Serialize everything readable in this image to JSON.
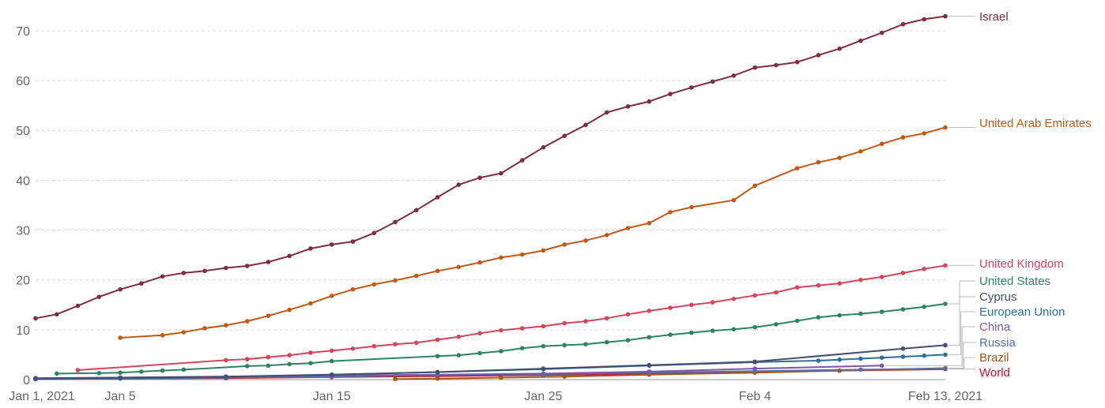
{
  "chart_data": {
    "type": "line",
    "title": "",
    "xlabel": "",
    "ylabel": "",
    "x_range": [
      "2021-01-01",
      "2021-02-13"
    ],
    "ylim": [
      0,
      73
    ],
    "y_ticks": [
      0,
      10,
      20,
      30,
      40,
      50,
      60,
      70
    ],
    "x_ticks": [
      {
        "date": "2021-01-01",
        "label": "Jan 1, 2021"
      },
      {
        "date": "2021-01-05",
        "label": "Jan 5"
      },
      {
        "date": "2021-01-15",
        "label": "Jan 15"
      },
      {
        "date": "2021-01-25",
        "label": "Jan 25"
      },
      {
        "date": "2021-02-04",
        "label": "Feb 4"
      },
      {
        "date": "2021-02-13",
        "label": "Feb 13, 2021"
      }
    ],
    "grid": true,
    "legend": "right",
    "series": [
      {
        "name": "Israel",
        "color": "#7d2f3f",
        "points": [
          [
            "2021-01-01",
            12.3
          ],
          [
            "2021-01-02",
            13.1
          ],
          [
            "2021-01-03",
            14.8
          ],
          [
            "2021-01-04",
            16.6
          ],
          [
            "2021-01-05",
            18.1
          ],
          [
            "2021-01-06",
            19.3
          ],
          [
            "2021-01-07",
            20.7
          ],
          [
            "2021-01-08",
            21.4
          ],
          [
            "2021-01-09",
            21.8
          ],
          [
            "2021-01-10",
            22.4
          ],
          [
            "2021-01-11",
            22.8
          ],
          [
            "2021-01-12",
            23.6
          ],
          [
            "2021-01-13",
            24.8
          ],
          [
            "2021-01-14",
            26.3
          ],
          [
            "2021-01-15",
            27.1
          ],
          [
            "2021-01-16",
            27.7
          ],
          [
            "2021-01-17",
            29.4
          ],
          [
            "2021-01-18",
            31.6
          ],
          [
            "2021-01-19",
            34.0
          ],
          [
            "2021-01-20",
            36.6
          ],
          [
            "2021-01-21",
            39.1
          ],
          [
            "2021-01-22",
            40.5
          ],
          [
            "2021-01-23",
            41.4
          ],
          [
            "2021-01-24",
            44.0
          ],
          [
            "2021-01-25",
            46.6
          ],
          [
            "2021-01-26",
            48.9
          ],
          [
            "2021-01-27",
            51.1
          ],
          [
            "2021-01-28",
            53.6
          ],
          [
            "2021-01-29",
            54.8
          ],
          [
            "2021-01-30",
            55.8
          ],
          [
            "2021-01-31",
            57.3
          ],
          [
            "2021-02-01",
            58.6
          ],
          [
            "2021-02-02",
            59.8
          ],
          [
            "2021-02-03",
            61.0
          ],
          [
            "2021-02-04",
            62.6
          ],
          [
            "2021-02-05",
            63.1
          ],
          [
            "2021-02-06",
            63.7
          ],
          [
            "2021-02-07",
            65.1
          ],
          [
            "2021-02-08",
            66.4
          ],
          [
            "2021-02-09",
            68.0
          ],
          [
            "2021-02-10",
            69.6
          ],
          [
            "2021-02-11",
            71.3
          ],
          [
            "2021-02-12",
            72.3
          ],
          [
            "2021-02-13",
            72.9
          ]
        ]
      },
      {
        "name": "United Arab Emirates",
        "color": "#c05917",
        "points": [
          [
            "2021-01-05",
            8.4
          ],
          [
            "2021-01-07",
            8.9
          ],
          [
            "2021-01-08",
            9.5
          ],
          [
            "2021-01-09",
            10.3
          ],
          [
            "2021-01-10",
            10.9
          ],
          [
            "2021-01-11",
            11.7
          ],
          [
            "2021-01-12",
            12.8
          ],
          [
            "2021-01-13",
            14.0
          ],
          [
            "2021-01-14",
            15.3
          ],
          [
            "2021-01-15",
            16.8
          ],
          [
            "2021-01-16",
            18.1
          ],
          [
            "2021-01-17",
            19.1
          ],
          [
            "2021-01-18",
            19.9
          ],
          [
            "2021-01-19",
            20.8
          ],
          [
            "2021-01-20",
            21.8
          ],
          [
            "2021-01-21",
            22.6
          ],
          [
            "2021-01-22",
            23.5
          ],
          [
            "2021-01-23",
            24.5
          ],
          [
            "2021-01-24",
            25.1
          ],
          [
            "2021-01-25",
            25.9
          ],
          [
            "2021-01-26",
            27.1
          ],
          [
            "2021-01-27",
            27.9
          ],
          [
            "2021-01-28",
            29.0
          ],
          [
            "2021-01-29",
            30.4
          ],
          [
            "2021-01-30",
            31.4
          ],
          [
            "2021-01-31",
            33.6
          ],
          [
            "2021-02-01",
            34.6
          ],
          [
            "2021-02-03",
            36.0
          ],
          [
            "2021-02-04",
            38.9
          ],
          [
            "2021-02-06",
            42.4
          ],
          [
            "2021-02-07",
            43.6
          ],
          [
            "2021-02-08",
            44.5
          ],
          [
            "2021-02-09",
            45.8
          ],
          [
            "2021-02-10",
            47.3
          ],
          [
            "2021-02-11",
            48.6
          ],
          [
            "2021-02-12",
            49.4
          ],
          [
            "2021-02-13",
            50.6
          ]
        ]
      },
      {
        "name": "United Kingdom",
        "color": "#d3455c",
        "points": [
          [
            "2021-01-03",
            1.9
          ],
          [
            "2021-01-10",
            3.9
          ],
          [
            "2021-01-11",
            4.1
          ],
          [
            "2021-01-12",
            4.5
          ],
          [
            "2021-01-13",
            4.9
          ],
          [
            "2021-01-14",
            5.4
          ],
          [
            "2021-01-15",
            5.8
          ],
          [
            "2021-01-16",
            6.2
          ],
          [
            "2021-01-17",
            6.7
          ],
          [
            "2021-01-18",
            7.1
          ],
          [
            "2021-01-19",
            7.4
          ],
          [
            "2021-01-20",
            8.0
          ],
          [
            "2021-01-21",
            8.6
          ],
          [
            "2021-01-22",
            9.3
          ],
          [
            "2021-01-23",
            9.9
          ],
          [
            "2021-01-24",
            10.3
          ],
          [
            "2021-01-25",
            10.7
          ],
          [
            "2021-01-26",
            11.3
          ],
          [
            "2021-01-27",
            11.7
          ],
          [
            "2021-01-28",
            12.3
          ],
          [
            "2021-01-29",
            13.1
          ],
          [
            "2021-01-30",
            13.8
          ],
          [
            "2021-01-31",
            14.4
          ],
          [
            "2021-02-01",
            15.0
          ],
          [
            "2021-02-02",
            15.5
          ],
          [
            "2021-02-03",
            16.2
          ],
          [
            "2021-02-04",
            16.9
          ],
          [
            "2021-02-05",
            17.5
          ],
          [
            "2021-02-06",
            18.5
          ],
          [
            "2021-02-07",
            18.9
          ],
          [
            "2021-02-08",
            19.3
          ],
          [
            "2021-02-09",
            20.0
          ],
          [
            "2021-02-10",
            20.6
          ],
          [
            "2021-02-11",
            21.4
          ],
          [
            "2021-02-12",
            22.2
          ],
          [
            "2021-02-13",
            22.9
          ]
        ]
      },
      {
        "name": "United States",
        "color": "#2d8367",
        "points": [
          [
            "2021-01-02",
            1.2
          ],
          [
            "2021-01-04",
            1.3
          ],
          [
            "2021-01-05",
            1.4
          ],
          [
            "2021-01-06",
            1.6
          ],
          [
            "2021-01-07",
            1.8
          ],
          [
            "2021-01-08",
            2.0
          ],
          [
            "2021-01-11",
            2.7
          ],
          [
            "2021-01-12",
            2.8
          ],
          [
            "2021-01-13",
            3.1
          ],
          [
            "2021-01-14",
            3.3
          ],
          [
            "2021-01-15",
            3.7
          ],
          [
            "2021-01-20",
            4.7
          ],
          [
            "2021-01-21",
            4.9
          ],
          [
            "2021-01-22",
            5.3
          ],
          [
            "2021-01-23",
            5.7
          ],
          [
            "2021-01-24",
            6.3
          ],
          [
            "2021-01-25",
            6.7
          ],
          [
            "2021-01-26",
            6.9
          ],
          [
            "2021-01-27",
            7.1
          ],
          [
            "2021-01-28",
            7.5
          ],
          [
            "2021-01-29",
            7.9
          ],
          [
            "2021-01-30",
            8.5
          ],
          [
            "2021-01-31",
            9.0
          ],
          [
            "2021-02-01",
            9.4
          ],
          [
            "2021-02-02",
            9.8
          ],
          [
            "2021-02-03",
            10.1
          ],
          [
            "2021-02-04",
            10.5
          ],
          [
            "2021-02-05",
            11.1
          ],
          [
            "2021-02-06",
            11.8
          ],
          [
            "2021-02-07",
            12.5
          ],
          [
            "2021-02-08",
            12.9
          ],
          [
            "2021-02-09",
            13.2
          ],
          [
            "2021-02-10",
            13.6
          ],
          [
            "2021-02-11",
            14.1
          ],
          [
            "2021-02-12",
            14.6
          ],
          [
            "2021-02-13",
            15.2
          ]
        ]
      },
      {
        "name": "Cyprus",
        "color": "#464d6d",
        "points": [
          [
            "2021-01-01",
            0.2
          ],
          [
            "2021-01-05",
            0.4
          ],
          [
            "2021-01-10",
            0.6
          ],
          [
            "2021-01-15",
            1.0
          ],
          [
            "2021-01-20",
            1.5
          ],
          [
            "2021-01-25",
            2.2
          ],
          [
            "2021-01-30",
            2.9
          ],
          [
            "2021-02-04",
            3.6
          ],
          [
            "2021-02-11",
            6.2
          ],
          [
            "2021-02-13",
            6.9
          ]
        ]
      },
      {
        "name": "European Union",
        "color": "#2a6f9e",
        "points": [
          [
            "2021-01-01",
            0.1
          ],
          [
            "2021-01-05",
            0.2
          ],
          [
            "2021-01-10",
            0.5
          ],
          [
            "2021-01-15",
            1.0
          ],
          [
            "2021-01-20",
            1.5
          ],
          [
            "2021-01-25",
            2.1
          ],
          [
            "2021-01-30",
            2.8
          ],
          [
            "2021-02-04",
            3.5
          ],
          [
            "2021-02-07",
            3.8
          ],
          [
            "2021-02-08",
            4.0
          ],
          [
            "2021-02-09",
            4.2
          ],
          [
            "2021-02-10",
            4.4
          ],
          [
            "2021-02-11",
            4.6
          ],
          [
            "2021-02-12",
            4.8
          ],
          [
            "2021-02-13",
            5.0
          ]
        ]
      },
      {
        "name": "China",
        "color": "#7a57a8",
        "points": [
          [
            "2021-01-01",
            0.3
          ],
          [
            "2021-01-05",
            0.4
          ],
          [
            "2021-01-10",
            0.6
          ],
          [
            "2021-01-15",
            0.8
          ],
          [
            "2021-01-20",
            1.0
          ],
          [
            "2021-01-25",
            1.2
          ],
          [
            "2021-01-30",
            1.6
          ],
          [
            "2021-02-04",
            2.2
          ],
          [
            "2021-02-10",
            2.8
          ]
        ]
      },
      {
        "name": "Russia",
        "color": "#5b6ea5",
        "points": [
          [
            "2021-01-01",
            0.1
          ],
          [
            "2021-01-05",
            0.2
          ],
          [
            "2021-01-10",
            0.4
          ],
          [
            "2021-01-15",
            0.6
          ],
          [
            "2021-01-20",
            0.9
          ],
          [
            "2021-01-25",
            1.1
          ],
          [
            "2021-01-30",
            1.4
          ],
          [
            "2021-02-04",
            1.7
          ],
          [
            "2021-02-09",
            2.0
          ],
          [
            "2021-02-13",
            2.2
          ]
        ]
      },
      {
        "name": "Brazil",
        "color": "#a35516",
        "points": [
          [
            "2021-01-18",
            0.1
          ],
          [
            "2021-01-20",
            0.2
          ],
          [
            "2021-01-23",
            0.4
          ],
          [
            "2021-01-26",
            0.6
          ],
          [
            "2021-01-30",
            1.0
          ],
          [
            "2021-02-04",
            1.4
          ],
          [
            "2021-02-08",
            1.8
          ],
          [
            "2021-02-13",
            2.3
          ]
        ]
      },
      {
        "name": "World",
        "color": "#c1122a",
        "points": [
          [
            "2021-01-01",
            0.1
          ],
          [
            "2021-01-05",
            0.2
          ],
          [
            "2021-01-10",
            0.3
          ],
          [
            "2021-01-15",
            0.5
          ],
          [
            "2021-01-20",
            0.7
          ],
          [
            "2021-01-25",
            0.9
          ],
          [
            "2021-01-30",
            1.2
          ],
          [
            "2021-02-04",
            1.5
          ],
          [
            "2021-02-08",
            1.8
          ],
          [
            "2021-02-13",
            2.1
          ]
        ]
      }
    ]
  }
}
